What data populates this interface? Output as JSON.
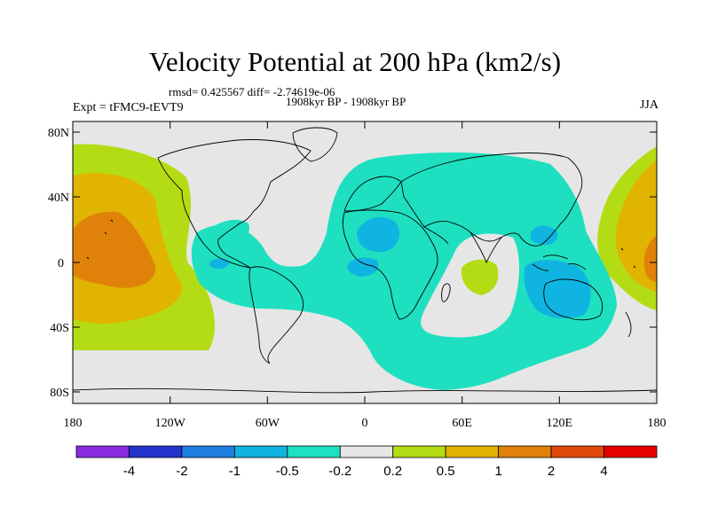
{
  "title": "Velocity Potential at 200 hPa (km2/s)",
  "rmsd_line": "rmsd= 0.425567 diff= -2.74619e-06",
  "period": "1908kyr BP - 1908kyr BP",
  "expt": "Expt = tFMC9-tEVT9",
  "season": "JJA",
  "lat_ticks": [
    "80N",
    "40N",
    "0",
    "40S",
    "80S"
  ],
  "lon_ticks": [
    "180",
    "120W",
    "60W",
    "0",
    "60E",
    "120E",
    "180"
  ],
  "colorbar": {
    "colors": [
      "#8a2be2",
      "#2233cc",
      "#1f7fe0",
      "#10b4e0",
      "#1ee0c0",
      "#e6e6e6",
      "#b4dc14",
      "#e0b400",
      "#e0820a",
      "#e04a0a",
      "#e60000"
    ],
    "labels": [
      "-4",
      "-2",
      "-1",
      "-0.5",
      "-0.2",
      "0.2",
      "0.5",
      "1",
      "2",
      "4"
    ]
  },
  "colors": {
    "ocean_background": "#e6e6e6",
    "coast": "#000000"
  }
}
